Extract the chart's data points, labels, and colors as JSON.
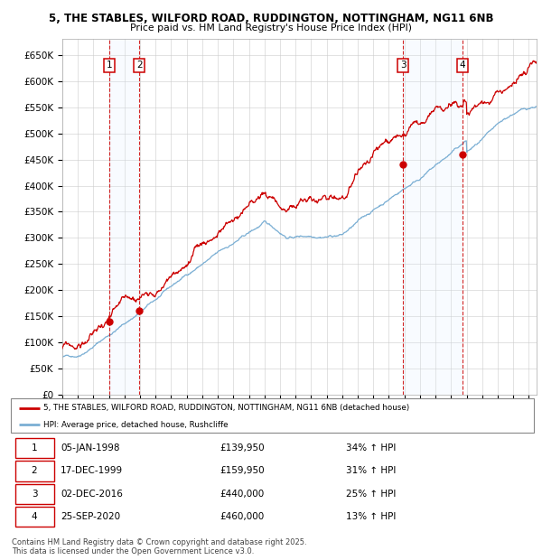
{
  "title_line1": "5, THE STABLES, WILFORD ROAD, RUDDINGTON, NOTTINGHAM, NG11 6NB",
  "title_line2": "Price paid vs. HM Land Registry's House Price Index (HPI)",
  "ylim": [
    0,
    680000
  ],
  "yticks": [
    0,
    50000,
    100000,
    150000,
    200000,
    250000,
    300000,
    350000,
    400000,
    450000,
    500000,
    550000,
    600000,
    650000
  ],
  "ytick_labels": [
    "£0",
    "£50K",
    "£100K",
    "£150K",
    "£200K",
    "£250K",
    "£300K",
    "£350K",
    "£400K",
    "£450K",
    "£500K",
    "£550K",
    "£600K",
    "£650K"
  ],
  "hpi_color": "#7bafd4",
  "price_color": "#cc0000",
  "vline_color": "#cc0000",
  "shade_color": "#ddeeff",
  "transactions": [
    {
      "num": 1,
      "date": "05-JAN-1998",
      "year": 1998.04,
      "price": 139950,
      "pct": "34%",
      "dir": "↑"
    },
    {
      "num": 2,
      "date": "17-DEC-1999",
      "year": 1999.96,
      "price": 159950,
      "pct": "31%",
      "dir": "↑"
    },
    {
      "num": 3,
      "date": "02-DEC-2016",
      "year": 2016.92,
      "price": 440000,
      "pct": "25%",
      "dir": "↑"
    },
    {
      "num": 4,
      "date": "25-SEP-2020",
      "year": 2020.73,
      "price": 460000,
      "pct": "13%",
      "dir": "↑"
    }
  ],
  "legend_label_price": "5, THE STABLES, WILFORD ROAD, RUDDINGTON, NOTTINGHAM, NG11 6NB (detached house)",
  "legend_label_hpi": "HPI: Average price, detached house, Rushcliffe",
  "footer_line1": "Contains HM Land Registry data © Crown copyright and database right 2025.",
  "footer_line2": "This data is licensed under the Open Government Licence v3.0.",
  "background_color": "#ffffff",
  "plot_bg_color": "#ffffff",
  "grid_color": "#cccccc",
  "xlim_start": 1995.0,
  "xlim_end": 2025.5
}
